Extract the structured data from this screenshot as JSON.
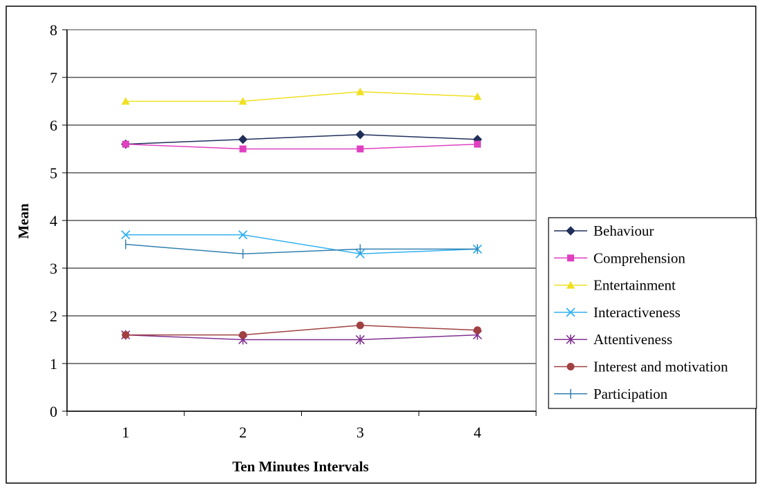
{
  "chart_data": {
    "type": "line",
    "xlabel": "Ten Minutes Intervals",
    "ylabel": "Mean",
    "x": [
      1,
      2,
      3,
      4
    ],
    "ylim": [
      0,
      8
    ],
    "yticks": [
      0,
      1,
      2,
      3,
      4,
      5,
      6,
      7,
      8
    ],
    "grid": "horizontal",
    "legend": "right",
    "series": [
      {
        "name": "Behaviour",
        "values": [
          5.6,
          5.7,
          5.8,
          5.7
        ],
        "color": "#1f2f5a",
        "marker": "diamond"
      },
      {
        "name": "Comprehension",
        "values": [
          5.6,
          5.5,
          5.5,
          5.6
        ],
        "color": "#e040c0",
        "marker": "square"
      },
      {
        "name": "Entertainment",
        "values": [
          6.5,
          6.5,
          6.7,
          6.6
        ],
        "color": "#f0e020",
        "marker": "triangle"
      },
      {
        "name": "Interactiveness",
        "values": [
          3.7,
          3.7,
          3.3,
          3.4
        ],
        "color": "#30b0f0",
        "marker": "x"
      },
      {
        "name": "Attentiveness",
        "values": [
          1.6,
          1.5,
          1.5,
          1.6
        ],
        "color": "#803090",
        "marker": "star"
      },
      {
        "name": "Interest and motivation",
        "values": [
          1.6,
          1.6,
          1.8,
          1.7
        ],
        "color": "#a04040",
        "marker": "circle"
      },
      {
        "name": "Participation",
        "values": [
          3.5,
          3.3,
          3.4,
          3.4
        ],
        "color": "#3080b0",
        "marker": "plus"
      }
    ]
  }
}
